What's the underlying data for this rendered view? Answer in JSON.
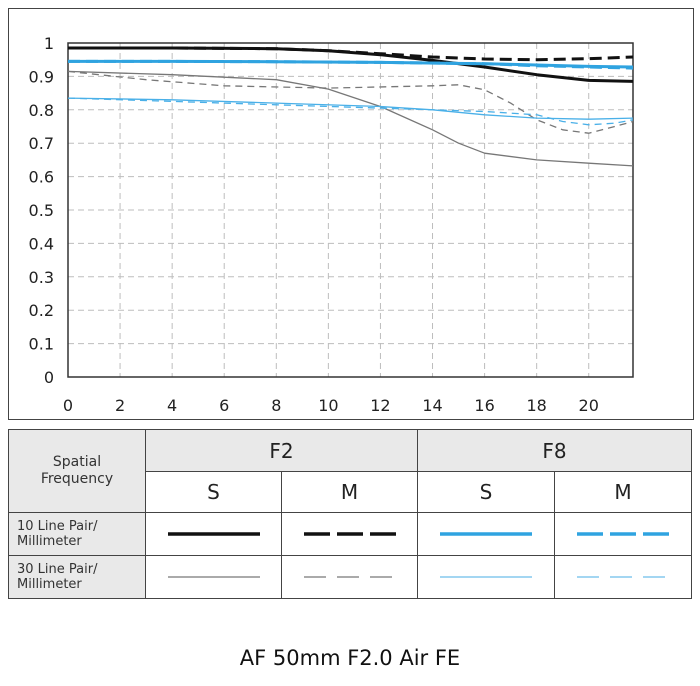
{
  "chart_data": {
    "type": "line",
    "title": "",
    "xlabel": "",
    "ylabel": "",
    "xlim": [
      0,
      21.7
    ],
    "ylim": [
      0,
      1
    ],
    "x_ticks": [
      "0",
      "2",
      "4",
      "6",
      "8",
      "10",
      "12",
      "14",
      "16",
      "18",
      "20"
    ],
    "y_ticks": [
      "0",
      "0.1",
      "0.2",
      "0.3",
      "0.4",
      "0.5",
      "0.6",
      "0.7",
      "0.8",
      "0.9",
      "1"
    ],
    "grid": true,
    "series": [
      {
        "name": "F2 S 10 Line Pair/Millimeter",
        "color": "#111111",
        "width": 3,
        "dash": "none",
        "points": [
          [
            0,
            0.985
          ],
          [
            4,
            0.985
          ],
          [
            8,
            0.983
          ],
          [
            10,
            0.977
          ],
          [
            12,
            0.965
          ],
          [
            14,
            0.948
          ],
          [
            16,
            0.928
          ],
          [
            18,
            0.905
          ],
          [
            20,
            0.888
          ],
          [
            21.7,
            0.885
          ]
        ]
      },
      {
        "name": "F2 M 10 Line Pair/Millimeter",
        "color": "#111111",
        "width": 3,
        "dash": "12,6",
        "points": [
          [
            0,
            0.985
          ],
          [
            4,
            0.985
          ],
          [
            8,
            0.983
          ],
          [
            10,
            0.977
          ],
          [
            12,
            0.968
          ],
          [
            14,
            0.958
          ],
          [
            16,
            0.952
          ],
          [
            18,
            0.95
          ],
          [
            20,
            0.953
          ],
          [
            21.7,
            0.958
          ]
        ]
      },
      {
        "name": "F2 S 30 Line Pair/Millimeter",
        "color": "#777777",
        "width": 1.3,
        "dash": "none",
        "points": [
          [
            0,
            0.915
          ],
          [
            4,
            0.905
          ],
          [
            8,
            0.89
          ],
          [
            10,
            0.862
          ],
          [
            12,
            0.81
          ],
          [
            14,
            0.74
          ],
          [
            15,
            0.7
          ],
          [
            16,
            0.67
          ],
          [
            18,
            0.65
          ],
          [
            20,
            0.64
          ],
          [
            21.7,
            0.632
          ]
        ]
      },
      {
        "name": "F2 M 30 Line Pair/Millimeter",
        "color": "#777777",
        "width": 1.3,
        "dash": "7,5",
        "points": [
          [
            0,
            0.915
          ],
          [
            3,
            0.89
          ],
          [
            6,
            0.872
          ],
          [
            10,
            0.865
          ],
          [
            14,
            0.872
          ],
          [
            15,
            0.875
          ],
          [
            16,
            0.86
          ],
          [
            17,
            0.82
          ],
          [
            18,
            0.77
          ],
          [
            19,
            0.74
          ],
          [
            20,
            0.73
          ],
          [
            21,
            0.75
          ],
          [
            21.7,
            0.765
          ]
        ]
      },
      {
        "name": "F8 S 10 Line Pair/Millimeter",
        "color": "#2fa3e0",
        "width": 3,
        "dash": "none",
        "points": [
          [
            0,
            0.945
          ],
          [
            4,
            0.945
          ],
          [
            8,
            0.944
          ],
          [
            12,
            0.942
          ],
          [
            16,
            0.938
          ],
          [
            18,
            0.934
          ],
          [
            20,
            0.93
          ],
          [
            21.7,
            0.928
          ]
        ]
      },
      {
        "name": "F8 M 10 Line Pair/Millimeter",
        "color": "#2fa3e0",
        "width": 3,
        "dash": "12,6",
        "points": [
          [
            0,
            0.945
          ],
          [
            4,
            0.945
          ],
          [
            8,
            0.944
          ],
          [
            12,
            0.942
          ],
          [
            16,
            0.938
          ],
          [
            18,
            0.932
          ],
          [
            20,
            0.928
          ],
          [
            21.7,
            0.925
          ]
        ]
      },
      {
        "name": "F8 S 30 Line Pair/Millimeter",
        "color": "#4ab0e8",
        "width": 1.3,
        "dash": "none",
        "points": [
          [
            0,
            0.835
          ],
          [
            4,
            0.83
          ],
          [
            8,
            0.82
          ],
          [
            12,
            0.81
          ],
          [
            14,
            0.8
          ],
          [
            16,
            0.785
          ],
          [
            18,
            0.775
          ],
          [
            20,
            0.772
          ],
          [
            21.7,
            0.775
          ]
        ]
      },
      {
        "name": "F8 M 30 Line Pair/Millimeter",
        "color": "#4ab0e8",
        "width": 1.3,
        "dash": "7,5",
        "points": [
          [
            0,
            0.835
          ],
          [
            4,
            0.825
          ],
          [
            8,
            0.815
          ],
          [
            12,
            0.805
          ],
          [
            14,
            0.8
          ],
          [
            16,
            0.795
          ],
          [
            18,
            0.785
          ],
          [
            19,
            0.765
          ],
          [
            20,
            0.755
          ],
          [
            21,
            0.76
          ],
          [
            21.7,
            0.77
          ]
        ]
      }
    ]
  },
  "legend": {
    "corner_label": "Spatial Frequency",
    "apertures": [
      "F2",
      "F8"
    ],
    "directions": [
      "S",
      "M",
      "S",
      "M"
    ],
    "rows": [
      "10 Line Pair/ Millimeter",
      "30 Line Pair/ Millimeter"
    ]
  },
  "footer": {
    "title": "AF 50mm F2.0 Air FE"
  }
}
